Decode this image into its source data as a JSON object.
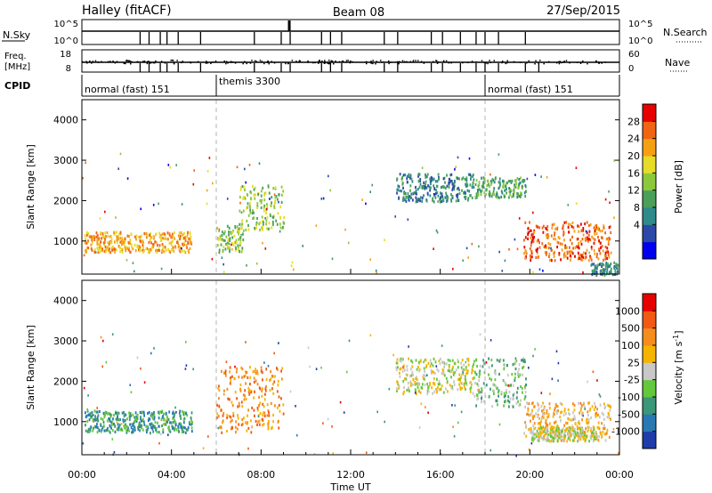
{
  "header": {
    "station": "Halley (fitACF)",
    "beam": "Beam 08",
    "date": "27/Sep/2015"
  },
  "summary_panels": {
    "nsky": {
      "label": "N.Sky",
      "ticks": [
        "10^5",
        "10^0"
      ]
    },
    "nsearch": {
      "label": "N.Search",
      "ticks": [
        "10^5",
        "10^0"
      ]
    },
    "freq": {
      "label_line1": "Freq.",
      "label_line2": "[MHz]",
      "ticks": [
        "18",
        "8"
      ]
    },
    "nave": {
      "label": "Nave",
      "ticks": [
        "60",
        "0"
      ]
    },
    "cpid": {
      "label": "CPID"
    }
  },
  "cpid_segments": [
    {
      "name": "normal (fast) 151",
      "start_hour": 0,
      "end_hour": 6
    },
    {
      "name": "themis 3300",
      "start_hour": 6,
      "end_hour": 18
    },
    {
      "name": "normal (fast) 151",
      "start_hour": 18,
      "end_hour": 24
    }
  ],
  "chart_data": [
    {
      "type": "heatmap",
      "name": "power",
      "ylabel": "Slant Range [km]",
      "xlabel": "Time UT",
      "xlim": [
        0,
        24
      ],
      "ylim": [
        180,
        4500
      ],
      "yticks": [
        1000,
        2000,
        3000,
        4000
      ],
      "colorbar": {
        "label": "Power [dB]",
        "ticks": [
          "28",
          "24",
          "20",
          "16",
          "12",
          "8",
          "4"
        ],
        "colors": [
          "#0000ee",
          "#2b4aa8",
          "#2f8a8a",
          "#4aa05a",
          "#8cc83c",
          "#e6dc28",
          "#f5a014",
          "#f06414",
          "#e60000"
        ]
      },
      "regions": [
        {
          "t0": 0.1,
          "t1": 4.9,
          "r0": 750,
          "r1": 1250,
          "class": 6
        },
        {
          "t0": 6.0,
          "t1": 7.2,
          "r0": 750,
          "r1": 1400,
          "class": 4
        },
        {
          "t0": 7.0,
          "t1": 9.0,
          "r0": 1300,
          "r1": 2400,
          "class": 4
        },
        {
          "t0": 14.0,
          "t1": 17.5,
          "r0": 2000,
          "r1": 2700,
          "class": 2
        },
        {
          "t0": 17.5,
          "t1": 19.8,
          "r0": 2100,
          "r1": 2600,
          "class": 3
        },
        {
          "t0": 19.7,
          "t1": 23.6,
          "r0": 550,
          "r1": 1500,
          "class": 7
        },
        {
          "t0": 22.7,
          "t1": 23.9,
          "r0": 180,
          "r1": 500,
          "class": 2
        }
      ]
    },
    {
      "type": "heatmap",
      "name": "velocity",
      "ylabel": "Slant Range [km]",
      "xlabel": "Time UT",
      "xlim": [
        0,
        24
      ],
      "ylim": [
        180,
        4500
      ],
      "yticks": [
        1000,
        2000,
        3000,
        4000
      ],
      "xticks": [
        "00:00",
        "04:00",
        "08:00",
        "12:00",
        "16:00",
        "20:00",
        "00:00"
      ],
      "colorbar": {
        "label": "Velocity [m s",
        "label_sup": "-1",
        "label_end": "]",
        "ticks": [
          "1000",
          "500",
          "100",
          "25",
          "-25",
          "-100",
          "-500",
          "-1000"
        ],
        "colors": [
          "#1e3caa",
          "#2878b4",
          "#3c9678",
          "#64c83c",
          "#c8c8c8",
          "#f5b400",
          "#f58c1e",
          "#f05a14",
          "#e60000"
        ]
      },
      "regions": [
        {
          "t0": 0.1,
          "t1": 4.9,
          "r0": 750,
          "r1": 1300,
          "class": 2
        },
        {
          "t0": 6.0,
          "t1": 9.0,
          "r0": 750,
          "r1": 2400,
          "class": 6
        },
        {
          "t0": 14.0,
          "t1": 17.5,
          "r0": 1700,
          "r1": 2600,
          "class": 4
        },
        {
          "t0": 17.5,
          "t1": 19.8,
          "r0": 1400,
          "r1": 2600,
          "class": 3
        },
        {
          "t0": 19.7,
          "t1": 23.6,
          "r0": 550,
          "r1": 1500,
          "class": 5
        },
        {
          "t0": 20.0,
          "t1": 23.0,
          "r0": 550,
          "r1": 900,
          "class": 4
        }
      ]
    }
  ]
}
